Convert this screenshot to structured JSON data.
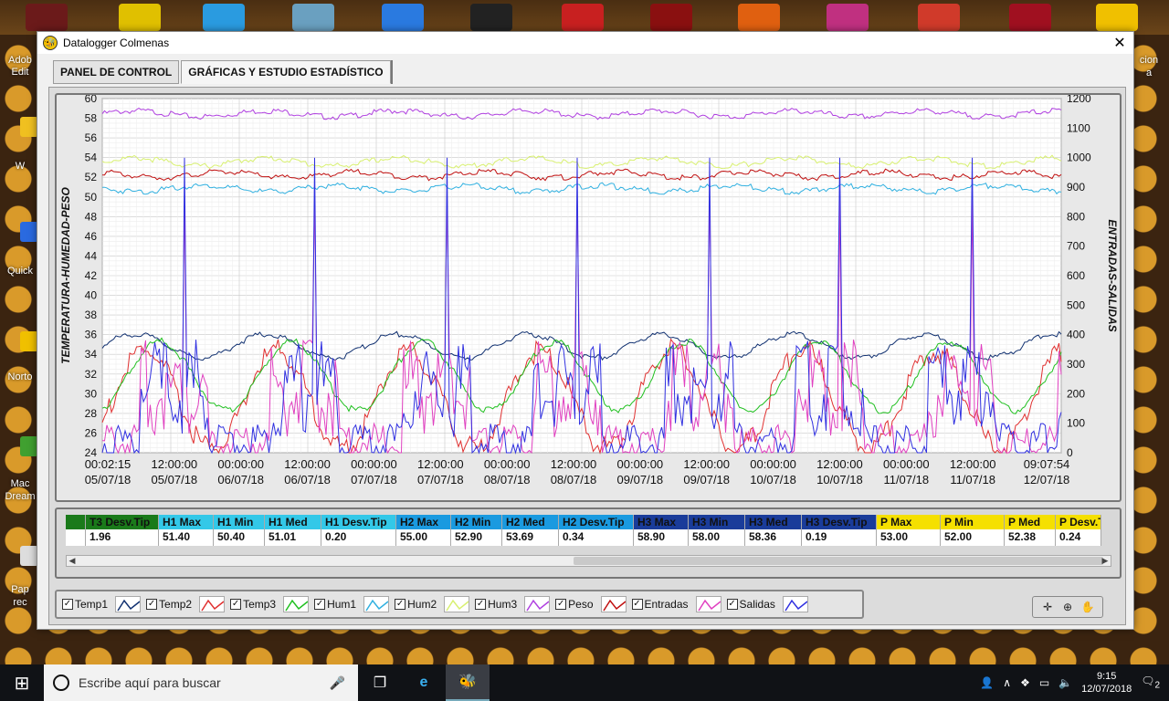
{
  "desktop": {
    "left_labels": [
      "Adob",
      "Edit",
      "W",
      "Quick",
      "Norto",
      "Mac",
      "Dream",
      "Pap",
      "rec"
    ],
    "right_labels": [
      "cion",
      "a"
    ]
  },
  "window": {
    "title": "Datalogger Colmenas",
    "close_label": "✕",
    "tabs": [
      {
        "label": "PANEL DE CONTROL",
        "active": false
      },
      {
        "label": "GRÁFICAS Y ESTUDIO ESTADÍSTICO",
        "active": true
      }
    ]
  },
  "chart_data": {
    "type": "line",
    "ylabel": "TEMPERATURA-HUMEDAD-PESO",
    "y2label": "ENTRADAS-SALIDAS",
    "ylim": [
      24,
      60
    ],
    "y2lim": [
      0,
      1200
    ],
    "yticks": [
      "60",
      "58",
      "56",
      "54",
      "52",
      "50",
      "48",
      "46",
      "44",
      "42",
      "40",
      "38",
      "36",
      "34",
      "32",
      "30",
      "28",
      "26",
      "24"
    ],
    "y2ticks": [
      "1200",
      "1100",
      "1000",
      "900",
      "800",
      "700",
      "600",
      "500",
      "400",
      "300",
      "200",
      "100",
      "0"
    ],
    "xticks": [
      {
        "time": "00:02:15",
        "date": "05/07/18"
      },
      {
        "time": "12:00:00",
        "date": "05/07/18"
      },
      {
        "time": "00:00:00",
        "date": "06/07/18"
      },
      {
        "time": "12:00:00",
        "date": "06/07/18"
      },
      {
        "time": "00:00:00",
        "date": "07/07/18"
      },
      {
        "time": "12:00:00",
        "date": "07/07/18"
      },
      {
        "time": "00:00:00",
        "date": "08/07/18"
      },
      {
        "time": "12:00:00",
        "date": "08/07/18"
      },
      {
        "time": "00:00:00",
        "date": "09/07/18"
      },
      {
        "time": "12:00:00",
        "date": "09/07/18"
      },
      {
        "time": "00:00:00",
        "date": "10/07/18"
      },
      {
        "time": "12:00:00",
        "date": "10/07/18"
      },
      {
        "time": "00:00:00",
        "date": "11/07/18"
      },
      {
        "time": "12:00:00",
        "date": "11/07/18"
      },
      {
        "time": "09:07:54",
        "date": "12/07/18"
      }
    ],
    "grid": true,
    "series": [
      {
        "name": "Hum3",
        "color": "#b040e0",
        "level": 58.6
      },
      {
        "name": "Hum2",
        "color": "#d8f070",
        "level": 53.7
      },
      {
        "name": "Peso",
        "color": "#c01010",
        "level": 52.4
      },
      {
        "name": "Hum1",
        "color": "#30b0e0",
        "level": 51.0
      },
      {
        "name": "Temp1",
        "color": "#103070",
        "level": 35.0
      },
      {
        "name": "Temp2",
        "color": "#e03030",
        "level": 31.0
      },
      {
        "name": "Temp3",
        "color": "#20c020",
        "level": 31.5
      },
      {
        "name": "Entradas",
        "color": "#e040c0",
        "level": 30.0
      },
      {
        "name": "Salidas",
        "color": "#3030e0",
        "level": 29.0
      }
    ]
  },
  "stats": {
    "headers": [
      {
        "label": "T3 Desv.Tip",
        "bg": "#1a7a1a"
      },
      {
        "label": "H1 Max",
        "bg": "#33c8e8"
      },
      {
        "label": "H1 Min",
        "bg": "#33c8e8"
      },
      {
        "label": "H1 Med",
        "bg": "#33c8e8"
      },
      {
        "label": "H1 Desv.Tip",
        "bg": "#33c8e8"
      },
      {
        "label": "H2 Max",
        "bg": "#1a9ae0"
      },
      {
        "label": "H2 Min",
        "bg": "#1a9ae0"
      },
      {
        "label": "H2 Med",
        "bg": "#1a9ae0"
      },
      {
        "label": "H2 Desv.Tip",
        "bg": "#1a9ae0"
      },
      {
        "label": "H3 Max",
        "bg": "#1a3c9a"
      },
      {
        "label": "H3 Min",
        "bg": "#1a3c9a"
      },
      {
        "label": "H3 Med",
        "bg": "#1a3c9a"
      },
      {
        "label": "H3 Desv.Tip",
        "bg": "#1a3c9a"
      },
      {
        "label": "P Max",
        "bg": "#f5e000"
      },
      {
        "label": "P Min",
        "bg": "#f5e000"
      },
      {
        "label": "P Med",
        "bg": "#f5e000"
      },
      {
        "label": "P Desv.T",
        "bg": "#f5e000"
      }
    ],
    "values": [
      "1.96",
      "51.40",
      "50.40",
      "51.01",
      "0.20",
      "55.00",
      "52.90",
      "53.69",
      "0.34",
      "58.90",
      "58.00",
      "58.36",
      "0.19",
      "53.00",
      "52.00",
      "52.38",
      "0.24"
    ]
  },
  "legend": {
    "items": [
      {
        "label": "Temp1",
        "color": "#103070"
      },
      {
        "label": "Temp2",
        "color": "#e03030"
      },
      {
        "label": "Temp3",
        "color": "#20c020"
      },
      {
        "label": "Hum1",
        "color": "#30b0e0"
      },
      {
        "label": "Hum2",
        "color": "#d8f070"
      },
      {
        "label": "Hum3",
        "color": "#b040e0"
      },
      {
        "label": "Peso",
        "color": "#c01010"
      },
      {
        "label": "Entradas",
        "color": "#e040c0"
      },
      {
        "label": "Salidas",
        "color": "#3030e0"
      }
    ]
  },
  "taskbar": {
    "search_placeholder": "Escribe aquí para buscar",
    "time": "9:15",
    "date": "12/07/2018",
    "notification_count": "2"
  }
}
